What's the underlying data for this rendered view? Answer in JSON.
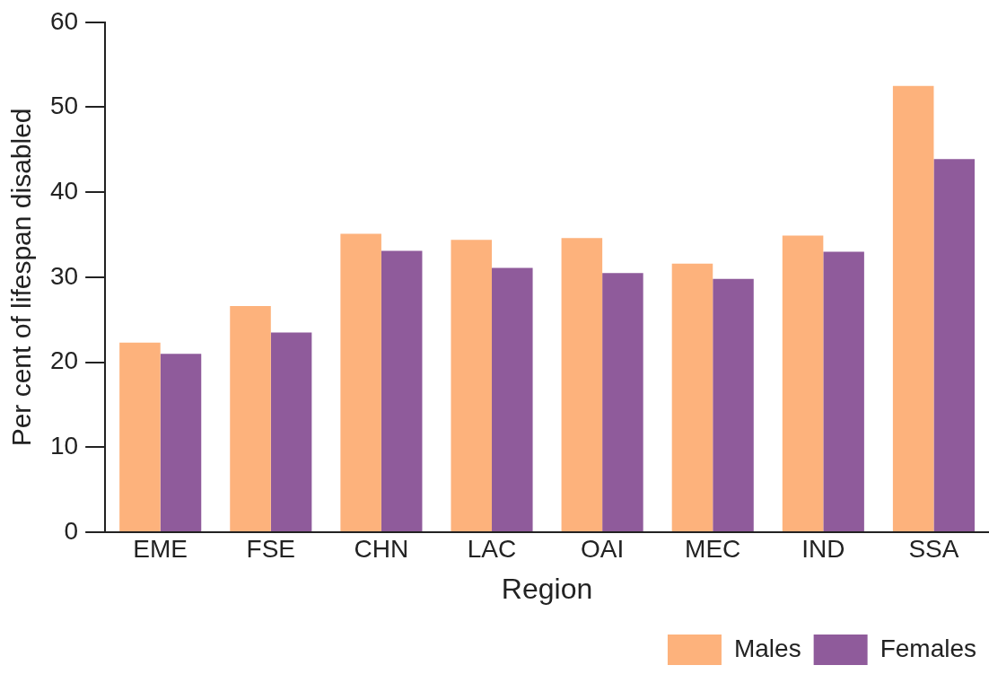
{
  "chart_data": {
    "type": "bar",
    "xlabel": "Region",
    "ylabel": "Per cent of lifespan disabled",
    "categories": [
      "EME",
      "FSE",
      "CHN",
      "LAC",
      "OAI",
      "MEC",
      "IND",
      "SSA"
    ],
    "series": [
      {
        "name": "Males",
        "color": "#fdb27c",
        "values": [
          22.3,
          26.6,
          35.1,
          34.4,
          34.6,
          31.6,
          34.9,
          52.5
        ]
      },
      {
        "name": "Females",
        "color": "#8f5b9b",
        "values": [
          21.0,
          23.5,
          33.1,
          31.1,
          30.5,
          29.8,
          33.0,
          43.9
        ]
      }
    ],
    "ylim": [
      0,
      60
    ],
    "yticks": [
      0,
      10,
      20,
      30,
      40,
      50,
      60
    ],
    "legend": "bottom right"
  }
}
